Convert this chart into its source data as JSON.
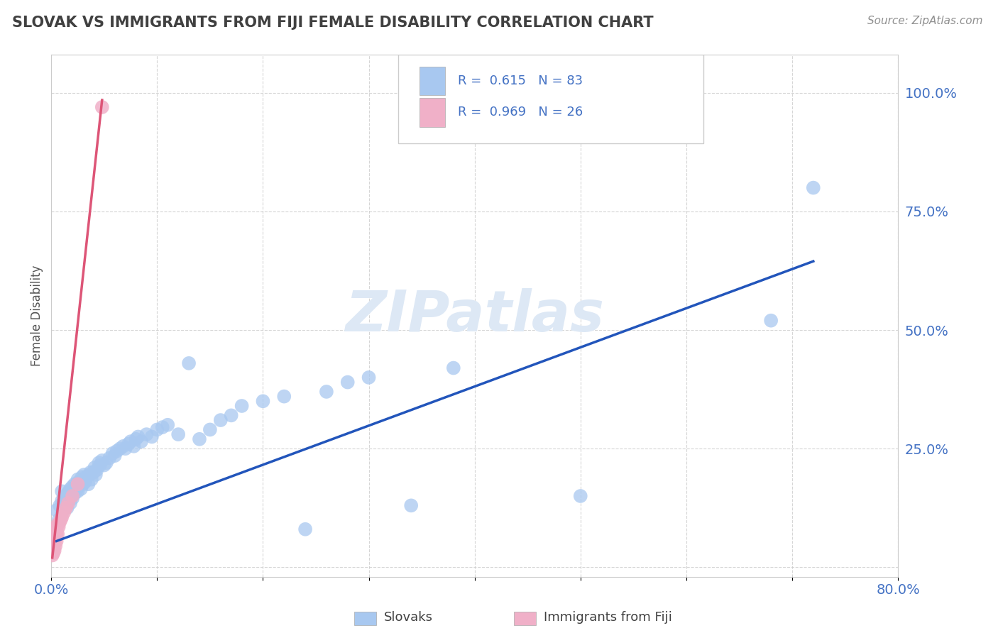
{
  "title": "SLOVAK VS IMMIGRANTS FROM FIJI FEMALE DISABILITY CORRELATION CHART",
  "source_text": "Source: ZipAtlas.com",
  "ylabel": "Female Disability",
  "xlim": [
    0.0,
    0.8
  ],
  "ylim": [
    -0.02,
    1.08
  ],
  "legend_r1": "R = 0.615",
  "legend_n1": "N = 83",
  "legend_r2": "R = 0.969",
  "legend_n2": "N = 26",
  "slovak_color": "#a8c8f0",
  "fiji_color": "#f0b0c8",
  "line_blue": "#2255bb",
  "line_pink": "#dd5577",
  "legend_text_color": "#4472c4",
  "title_color": "#404040",
  "source_color": "#909090",
  "background_color": "#ffffff",
  "watermark_color": "#dde8f5",
  "watermark_text": "ZIPatlas",
  "slovak_x": [
    0.005,
    0.007,
    0.008,
    0.01,
    0.01,
    0.01,
    0.012,
    0.013,
    0.014,
    0.015,
    0.015,
    0.016,
    0.017,
    0.018,
    0.018,
    0.019,
    0.02,
    0.02,
    0.021,
    0.022,
    0.022,
    0.023,
    0.024,
    0.025,
    0.025,
    0.026,
    0.027,
    0.028,
    0.029,
    0.03,
    0.03,
    0.031,
    0.032,
    0.033,
    0.035,
    0.036,
    0.037,
    0.038,
    0.04,
    0.041,
    0.042,
    0.043,
    0.045,
    0.046,
    0.048,
    0.05,
    0.052,
    0.055,
    0.058,
    0.06,
    0.062,
    0.065,
    0.068,
    0.07,
    0.073,
    0.075,
    0.078,
    0.08,
    0.082,
    0.085,
    0.09,
    0.095,
    0.1,
    0.105,
    0.11,
    0.12,
    0.13,
    0.14,
    0.15,
    0.16,
    0.17,
    0.18,
    0.2,
    0.22,
    0.24,
    0.26,
    0.28,
    0.3,
    0.34,
    0.38,
    0.5,
    0.68,
    0.72
  ],
  "slovak_y": [
    0.12,
    0.1,
    0.13,
    0.115,
    0.14,
    0.16,
    0.13,
    0.145,
    0.15,
    0.125,
    0.155,
    0.14,
    0.16,
    0.135,
    0.165,
    0.15,
    0.145,
    0.17,
    0.16,
    0.155,
    0.175,
    0.17,
    0.165,
    0.185,
    0.16,
    0.18,
    0.175,
    0.165,
    0.19,
    0.175,
    0.185,
    0.195,
    0.18,
    0.19,
    0.175,
    0.195,
    0.2,
    0.185,
    0.2,
    0.21,
    0.195,
    0.205,
    0.22,
    0.215,
    0.225,
    0.215,
    0.22,
    0.23,
    0.24,
    0.235,
    0.245,
    0.25,
    0.255,
    0.25,
    0.26,
    0.265,
    0.255,
    0.27,
    0.275,
    0.265,
    0.28,
    0.275,
    0.29,
    0.295,
    0.3,
    0.28,
    0.43,
    0.27,
    0.29,
    0.31,
    0.32,
    0.34,
    0.35,
    0.36,
    0.08,
    0.37,
    0.39,
    0.4,
    0.13,
    0.42,
    0.15,
    0.52,
    0.8
  ],
  "fiji_x": [
    0.001,
    0.002,
    0.002,
    0.003,
    0.003,
    0.003,
    0.004,
    0.004,
    0.004,
    0.005,
    0.005,
    0.005,
    0.005,
    0.005,
    0.006,
    0.006,
    0.007,
    0.008,
    0.009,
    0.01,
    0.012,
    0.014,
    0.016,
    0.02,
    0.025,
    0.048
  ],
  "fiji_y": [
    0.025,
    0.03,
    0.04,
    0.035,
    0.05,
    0.055,
    0.045,
    0.06,
    0.065,
    0.055,
    0.07,
    0.075,
    0.08,
    0.085,
    0.07,
    0.09,
    0.085,
    0.095,
    0.1,
    0.105,
    0.115,
    0.125,
    0.135,
    0.15,
    0.175,
    0.97
  ],
  "blue_line_x": [
    0.005,
    0.72
  ],
  "blue_line_y": [
    0.055,
    0.645
  ],
  "pink_line_x": [
    0.001,
    0.048
  ],
  "pink_line_y": [
    0.02,
    0.985
  ]
}
